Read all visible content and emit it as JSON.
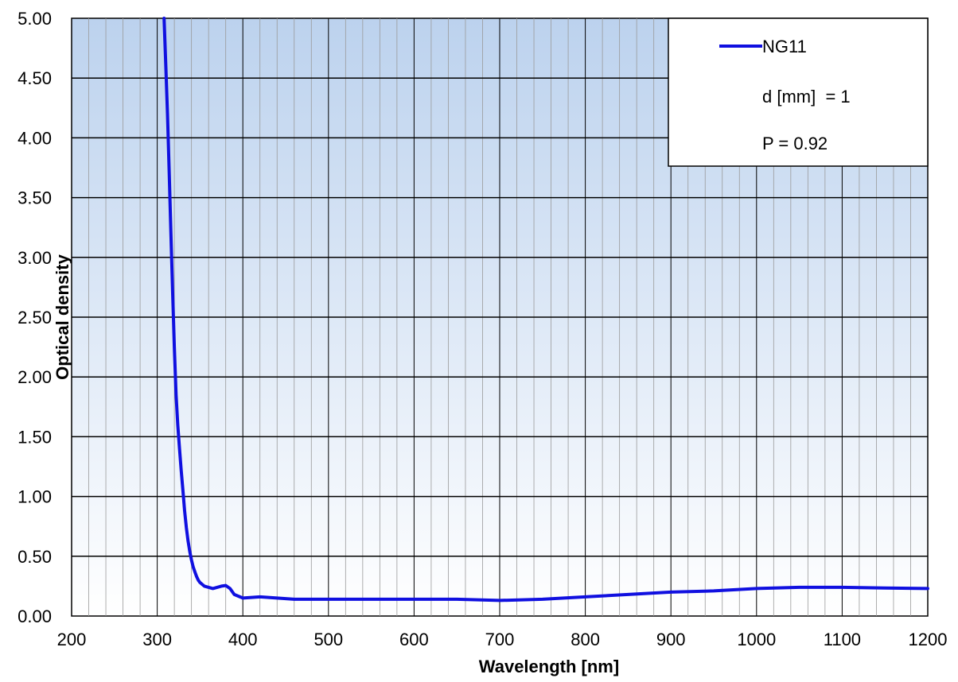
{
  "chart_data": {
    "type": "line",
    "xlabel": "Wavelength [nm]",
    "ylabel": "Optical density",
    "xlim": [
      200,
      1200
    ],
    "ylim": [
      0,
      5
    ],
    "x_ticks": [
      200,
      300,
      400,
      500,
      600,
      700,
      800,
      900,
      1000,
      1100,
      1200
    ],
    "x_tick_labels": [
      "200",
      "300",
      "400",
      "500",
      "600",
      "700",
      "800",
      "900",
      "1000",
      "1100",
      "1200"
    ],
    "y_ticks": [
      0,
      0.5,
      1,
      1.5,
      2,
      2.5,
      3,
      3.5,
      4,
      4.5,
      5
    ],
    "y_tick_labels": [
      "0.00",
      "0.50",
      "1.00",
      "1.50",
      "2.00",
      "2.50",
      "3.00",
      "3.50",
      "4.00",
      "4.50",
      "5.00"
    ],
    "grid": true,
    "minor_x_step": 20,
    "legend_position": "top-right",
    "legend": {
      "entry": "NG11",
      "lines": [
        "d [mm]  = 1",
        "P = 0.92"
      ]
    },
    "series": [
      {
        "name": "NG11",
        "color": "#1010e0",
        "x": [
          308,
          310,
          312,
          314,
          316,
          318,
          320,
          322,
          324,
          326,
          328,
          330,
          332,
          334,
          336,
          338,
          340,
          342,
          344,
          346,
          348,
          350,
          355,
          360,
          365,
          370,
          375,
          380,
          385,
          390,
          400,
          420,
          440,
          460,
          500,
          550,
          600,
          650,
          700,
          750,
          800,
          850,
          900,
          950,
          1000,
          1050,
          1100,
          1150,
          1200
        ],
        "y": [
          5.0,
          4.6,
          4.2,
          3.7,
          3.2,
          2.7,
          2.25,
          1.85,
          1.6,
          1.4,
          1.22,
          1.05,
          0.88,
          0.74,
          0.63,
          0.54,
          0.47,
          0.41,
          0.37,
          0.33,
          0.3,
          0.28,
          0.25,
          0.24,
          0.23,
          0.24,
          0.25,
          0.255,
          0.23,
          0.18,
          0.15,
          0.16,
          0.15,
          0.14,
          0.14,
          0.14,
          0.14,
          0.14,
          0.13,
          0.14,
          0.16,
          0.18,
          0.2,
          0.21,
          0.23,
          0.24,
          0.24,
          0.235,
          0.23
        ]
      }
    ]
  }
}
